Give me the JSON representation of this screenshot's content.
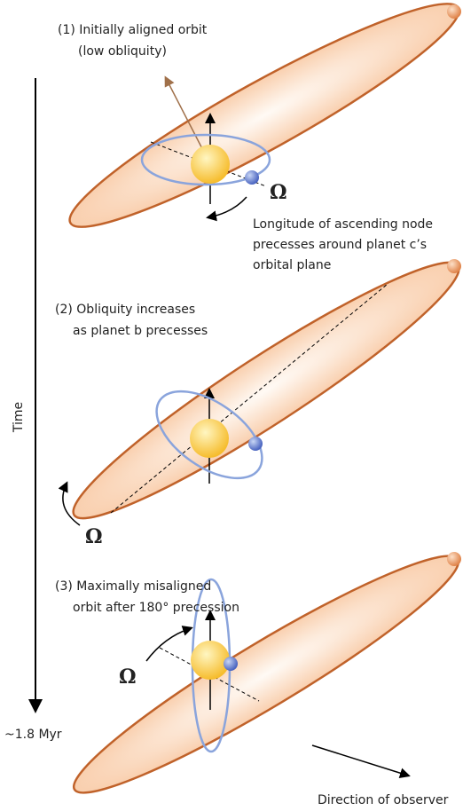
{
  "panels": [
    {
      "caption": [
        "(1) Initially aligned orbit",
        "(low obliquity)"
      ],
      "node_symbol": "Ω",
      "note": [
        "Longitude of ascending node",
        "precesses around planet c’s",
        "orbital plane"
      ]
    },
    {
      "caption": [
        "(2) Obliquity increases",
        "as planet b precesses"
      ],
      "node_symbol": "Ω"
    },
    {
      "caption": [
        "(3) Maximally misaligned",
        "orbit after 180° precession"
      ],
      "node_symbol": "Ω"
    }
  ],
  "time_axis": {
    "label": "Time",
    "end_label": "~1.8 Myr"
  },
  "observer": {
    "label": "Direction of observer"
  }
}
